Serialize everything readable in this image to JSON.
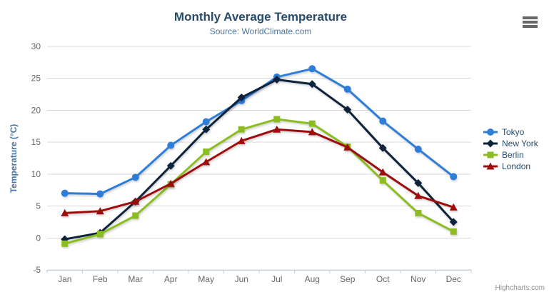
{
  "chart": {
    "title": "Monthly Average Temperature",
    "subtitle": "Source: WorldClimate.com",
    "credits": "Highcharts.com"
  },
  "chart_data": {
    "type": "line",
    "title": "Monthly Average Temperature",
    "subtitle": "Source: WorldClimate.com",
    "xlabel": "",
    "ylabel": "Temperature (°C)",
    "categories": [
      "Jan",
      "Feb",
      "Mar",
      "Apr",
      "May",
      "Jun",
      "Jul",
      "Aug",
      "Sep",
      "Oct",
      "Nov",
      "Dec"
    ],
    "ylim": [
      -5,
      30
    ],
    "yticks": [
      -5,
      0,
      5,
      10,
      15,
      20,
      25,
      30
    ],
    "grid": true,
    "legend_position": "right",
    "series": [
      {
        "name": "Tokyo",
        "color": "#2f7ed8",
        "marker": "circle",
        "values": [
          7.0,
          6.9,
          9.5,
          14.5,
          18.2,
          21.5,
          25.2,
          26.5,
          23.3,
          18.3,
          13.9,
          9.6
        ]
      },
      {
        "name": "New York",
        "color": "#0d233a",
        "marker": "diamond",
        "values": [
          -0.2,
          0.8,
          5.7,
          11.3,
          17.0,
          22.0,
          24.8,
          24.1,
          20.1,
          14.1,
          8.6,
          2.5
        ]
      },
      {
        "name": "Berlin",
        "color": "#8bbc21",
        "marker": "square",
        "values": [
          -0.9,
          0.6,
          3.5,
          8.4,
          13.5,
          17.0,
          18.6,
          17.9,
          14.3,
          9.0,
          3.9,
          1.0
        ]
      },
      {
        "name": "London",
        "color": "#9e1010",
        "marker": "triangle",
        "values": [
          3.9,
          4.2,
          5.7,
          8.5,
          11.9,
          15.2,
          17.0,
          16.6,
          14.2,
          10.3,
          6.6,
          4.8
        ]
      }
    ],
    "colors": {
      "title": "#274b6d",
      "subtitle": "#4d759e",
      "axis_labels": "#666666",
      "y_axis_title": "#4572a7",
      "gridline": "#d8d8d8",
      "axis_line": "#c0d0e0",
      "legend_text": "#274b6d",
      "credits": "#909090"
    }
  }
}
